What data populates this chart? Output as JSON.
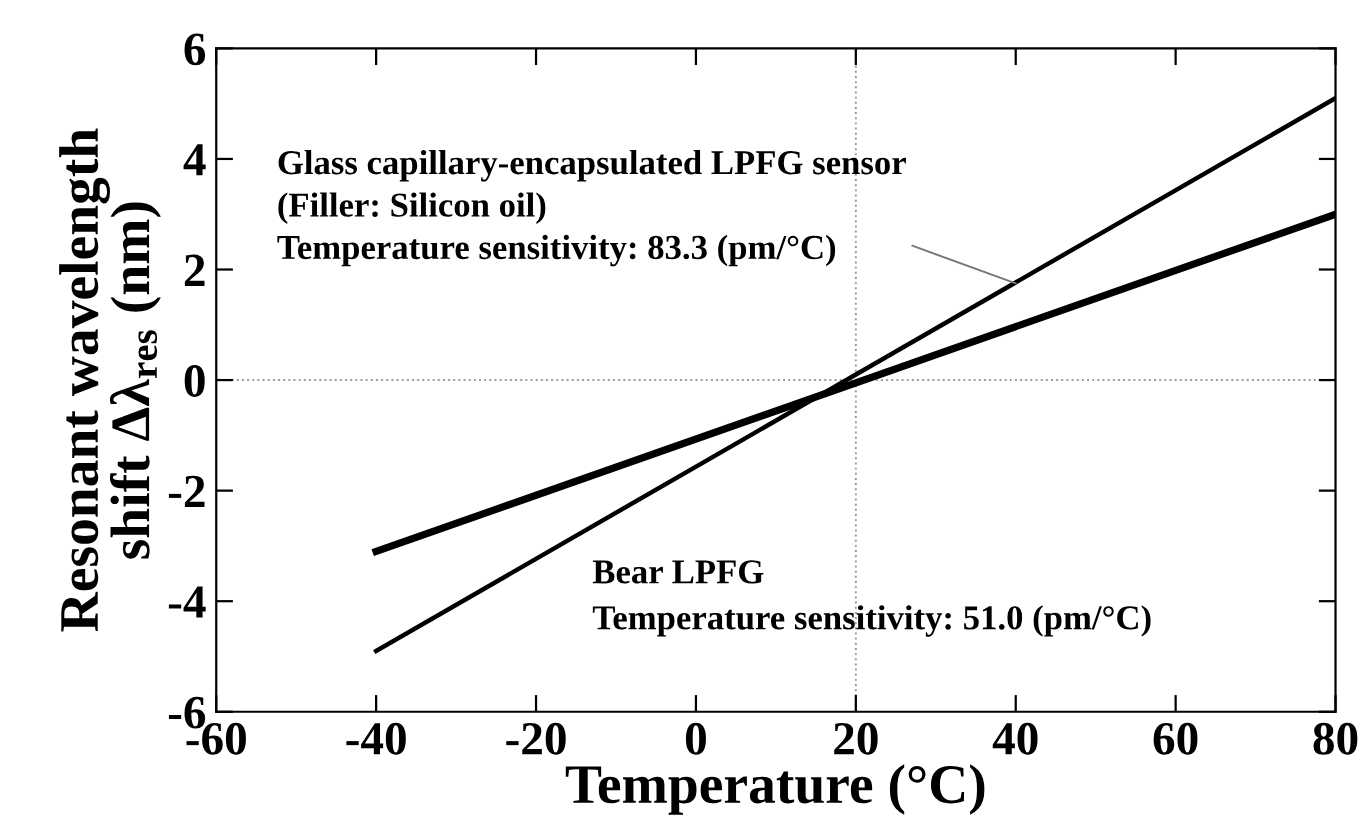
{
  "chart_data": {
    "type": "line",
    "xlabel": "Temperature (°C)",
    "ylabel": "Resonant wavelength\nshift Δλ$_{res}$ (nm)",
    "series": [
      {
        "color": "#000000",
        "values": [
          -4.9,
          5.1
        ]
      },
      {
        "color": "#000000",
        "values": [
          -3.1,
          3.0
        ]
      }
    ],
    "x": [
      -40,
      80
    ],
    "xlim": [
      -60,
      80
    ],
    "xticks": [
      -60,
      -40,
      -20,
      0,
      20,
      40,
      60,
      80
    ],
    "ylim": [
      -6,
      6
    ],
    "yticks": [
      -6,
      -4,
      -2,
      0,
      2,
      4,
      6
    ],
    "ref_lines": [
      {
        "axis": "y",
        "value": 0,
        "color": "#999999",
        "line_style": "dotted"
      },
      {
        "axis": "x",
        "value": 20,
        "color": "#999999",
        "line_style": "dotted"
      }
    ],
    "annotations": [
      {
        "text": "Glass capillary-encapsulated LPFG sensor\n(Filler: Silicon oil)\nTemperature sensitivity: 83.3 (pm/°C)",
        "x": 40,
        "y": 1.75
      },
      "Bear LPFG\nTemperature sensitivity: 51.0 (pm/°C)"
    ],
    "grid": false,
    "legend": false,
    "marker": "none",
    "line_style": "solid"
  }
}
